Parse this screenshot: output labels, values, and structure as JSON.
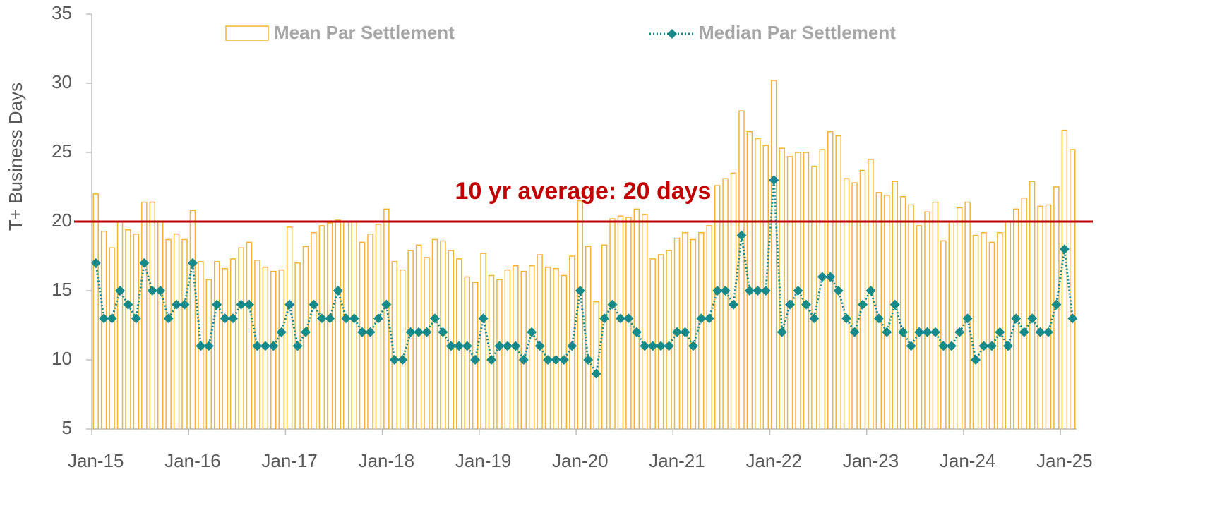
{
  "chart_data": {
    "type": "bar_line",
    "y_axis_label": "T+ Business Days",
    "ylim": [
      5,
      35
    ],
    "yticks": [
      5,
      10,
      15,
      20,
      25,
      30,
      35
    ],
    "grid": false,
    "legend": "top",
    "categories": [
      "Jan-15",
      null,
      null,
      null,
      null,
      null,
      null,
      null,
      null,
      null,
      null,
      null,
      "Jan-16",
      null,
      null,
      null,
      null,
      null,
      null,
      null,
      null,
      null,
      null,
      null,
      "Jan-17",
      null,
      null,
      null,
      null,
      null,
      null,
      null,
      null,
      null,
      null,
      null,
      "Jan-18",
      null,
      null,
      null,
      null,
      null,
      null,
      null,
      null,
      null,
      null,
      null,
      "Jan-19",
      null,
      null,
      null,
      null,
      null,
      null,
      null,
      null,
      null,
      null,
      null,
      "Jan-20",
      null,
      null,
      null,
      null,
      null,
      null,
      null,
      null,
      null,
      null,
      null,
      "Jan-21",
      null,
      null,
      null,
      null,
      null,
      null,
      null,
      null,
      null,
      null,
      null,
      "Jan-22",
      null,
      null,
      null,
      null,
      null,
      null,
      null,
      null,
      null,
      null,
      null,
      "Jan-23",
      null,
      null,
      null,
      null,
      null,
      null,
      null,
      null,
      null,
      null,
      null,
      "Jan-24",
      null,
      null,
      null,
      null,
      null,
      null,
      null,
      null,
      null,
      null,
      null,
      "Jan-25",
      null
    ],
    "series": [
      {
        "name": "Mean Par Settlement",
        "kind": "bar",
        "color": "#f5b335",
        "values": [
          22,
          19.3,
          18.1,
          20,
          19.4,
          19.1,
          21.4,
          21.4,
          20,
          18.7,
          19.1,
          18.7,
          20.8,
          17.1,
          15.8,
          17.1,
          16.6,
          17.3,
          18.1,
          18.5,
          17.2,
          16.7,
          16.4,
          16.5,
          19.6,
          17,
          18.2,
          19.2,
          19.7,
          19.9,
          20.1,
          20,
          20,
          18.5,
          19.1,
          19.8,
          20.9,
          17.1,
          16.5,
          17.9,
          18.3,
          17.4,
          18.7,
          18.6,
          17.9,
          17.3,
          16,
          15.6,
          17.7,
          16.1,
          15.8,
          16.5,
          16.8,
          16.4,
          16.8,
          17.6,
          16.7,
          16.6,
          16.1,
          17.5,
          21.5,
          18.2,
          14.2,
          18.3,
          20.2,
          20.4,
          20.3,
          20.9,
          20.5,
          17.3,
          17.6,
          17.9,
          18.8,
          19.2,
          18.7,
          19.2,
          19.7,
          22.6,
          23.1,
          23.5,
          28,
          26.5,
          26,
          25.5,
          30.2,
          25.3,
          24.7,
          25,
          25,
          24,
          25.2,
          26.5,
          26.2,
          23.1,
          22.8,
          23.7,
          24.5,
          22.1,
          21.9,
          22.9,
          21.8,
          21.2,
          19.7,
          20.7,
          21.4,
          18.6,
          20,
          21,
          21.4,
          19,
          19.2,
          18.5,
          19.2,
          20,
          20.9,
          21.7,
          22.9,
          21.1,
          21.2,
          22.5,
          26.6,
          25.2
        ]
      },
      {
        "name": "Median Par Settlement",
        "kind": "line",
        "color": "#168a8a",
        "values": [
          17,
          13,
          13,
          15,
          14,
          13,
          17,
          15,
          15,
          13,
          14,
          14,
          17,
          11,
          11,
          14,
          13,
          13,
          14,
          14,
          11,
          11,
          11,
          12,
          14,
          11,
          12,
          14,
          13,
          13,
          15,
          13,
          13,
          12,
          12,
          13,
          14,
          10,
          10,
          12,
          12,
          12,
          13,
          12,
          11,
          11,
          11,
          10,
          13,
          10,
          11,
          11,
          11,
          10,
          12,
          11,
          10,
          10,
          10,
          11,
          15,
          10,
          9,
          13,
          14,
          13,
          13,
          12,
          11,
          11,
          11,
          11,
          12,
          12,
          11,
          13,
          13,
          15,
          15,
          14,
          19,
          15,
          15,
          15,
          23,
          12,
          14,
          15,
          14,
          13,
          16,
          16,
          15,
          13,
          12,
          14,
          15,
          13,
          12,
          14,
          12,
          11,
          12,
          12,
          12,
          11,
          11,
          12,
          13,
          10,
          11,
          11,
          12,
          11,
          13,
          12,
          13,
          12,
          12,
          14,
          18,
          13
        ]
      }
    ],
    "reference_line": {
      "value": 20,
      "label": "10 yr average:  20 days",
      "color": "#c00000"
    }
  }
}
